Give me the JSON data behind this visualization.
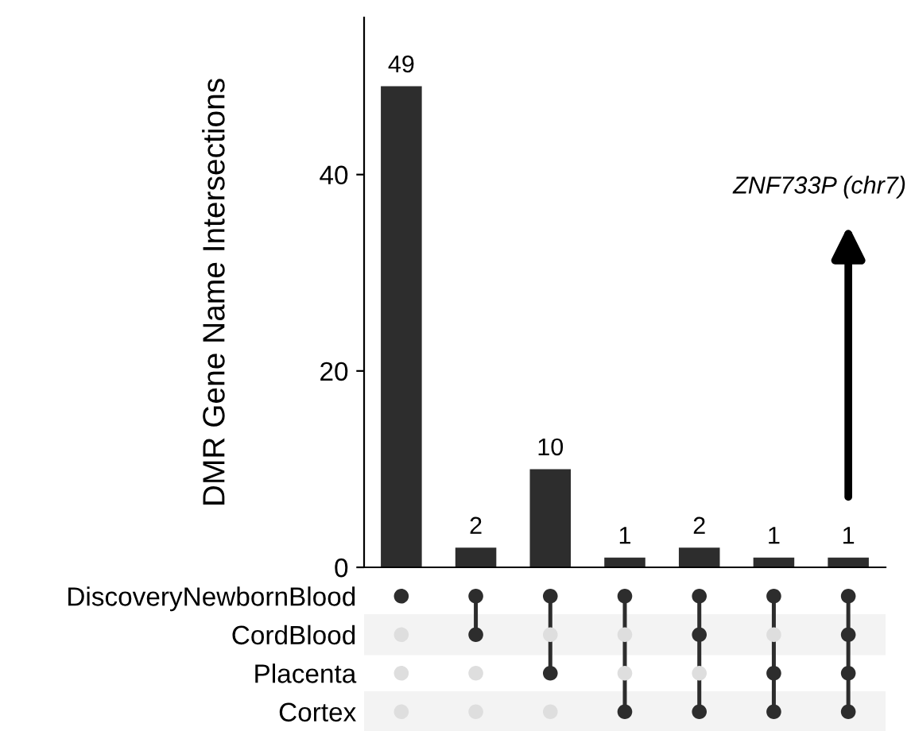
{
  "chart_data": [
    {
      "type": "bar",
      "ylabel": "DMR Gene Name Intersections",
      "categories": [
        null,
        null,
        null,
        null,
        null,
        null,
        null
      ],
      "values": [
        49,
        2,
        10,
        1,
        2,
        1,
        1
      ],
      "color": "#2d2d2d",
      "data_labels": true,
      "ylim": [
        0,
        56
      ],
      "yticks": [
        0,
        20,
        40
      ],
      "grid": false,
      "annotations": [
        "ZNF733P (chr7)"
      ]
    },
    {
      "type": "other",
      "annotations": [
        "DiscoveryNewbornBlood",
        "CordBlood",
        "Placenta",
        "Cortex"
      ]
    }
  ]
}
